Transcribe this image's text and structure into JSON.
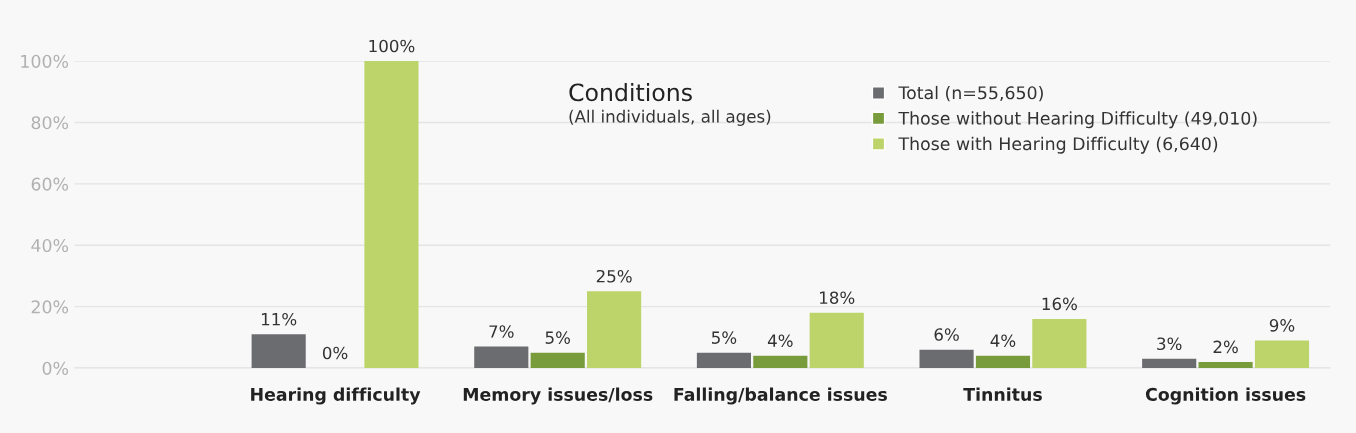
{
  "chart_data": {
    "type": "bar",
    "title": "Conditions",
    "subtitle": "(All individuals, all ages)",
    "categories": [
      "Hearing difficulty",
      "Memory issues/loss",
      "Falling/balance issues",
      "Tinnitus",
      "Cognition issues"
    ],
    "series": [
      {
        "name": "Total (n=55,650)",
        "color": "#6b6c70",
        "values": [
          11,
          7,
          5,
          6,
          3
        ],
        "value_labels": [
          "11%",
          "7%",
          "5%",
          "6%",
          "3%"
        ]
      },
      {
        "name": "Those without Hearing Difficulty (49,010)",
        "color": "#789c3c",
        "values": [
          0,
          5,
          4,
          4,
          2
        ],
        "value_labels": [
          "0%",
          "5%",
          "4%",
          "4%",
          "2%"
        ]
      },
      {
        "name": "Those with Hearing Difficulty (6,640)",
        "color": "#bcd46a",
        "values": [
          100,
          25,
          18,
          16,
          9
        ],
        "value_labels": [
          "100%",
          "25%",
          "18%",
          "16%",
          "9%"
        ]
      }
    ],
    "ylim": [
      0,
      100
    ],
    "yticks": [
      {
        "value": 0,
        "label": "0%"
      },
      {
        "value": 20,
        "label": "20%"
      },
      {
        "value": 40,
        "label": "40%"
      },
      {
        "value": 60,
        "label": "60%"
      },
      {
        "value": 80,
        "label": "80%"
      },
      {
        "value": 100,
        "label": "100%"
      }
    ],
    "grid": "y",
    "legend": "top right"
  }
}
